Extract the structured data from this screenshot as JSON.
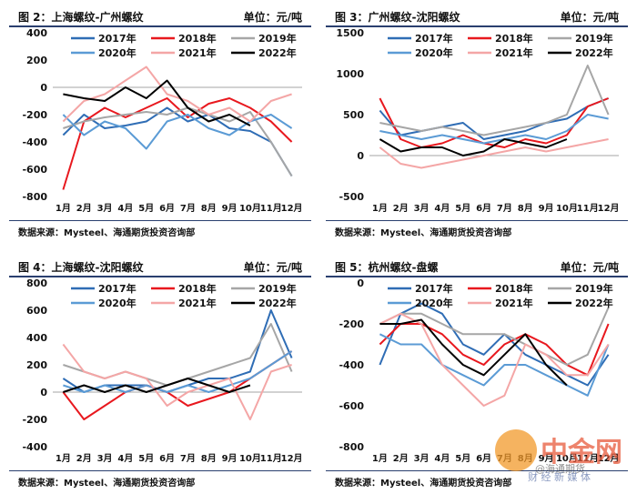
{
  "panels": [
    {
      "title": "图 2：上海螺纹-广州螺纹",
      "unit": "单位：元/吨",
      "source": "数据来源：Mysteel、海通期货投资咨询部"
    },
    {
      "title": "图 3：广州螺纹-沈阳螺纹",
      "unit": "单位：元/吨",
      "source": "数据来源：Mysteel、海通期货投资咨询部"
    },
    {
      "title": "图 4：上海螺纹-沈阳螺纹",
      "unit": "单位：元/吨",
      "source": "数据来源：Mysteel、海通期货投资咨询部"
    },
    {
      "title": "图 5：杭州螺纹-盘螺",
      "unit": "单位：元/吨",
      "source": "数据来源：Mysteel、海通期货投资咨询部"
    }
  ],
  "watermark": {
    "brand": "中金网",
    "handle": "@海通期货",
    "tagline": "财 经 新 媒 体"
  },
  "colors": {
    "2017年": "#2f6db5",
    "2018年": "#e8181e",
    "2019年": "#a6a6a6",
    "2020年": "#5b9bd5",
    "2021年": "#f4a6a6",
    "2022年": "#000000"
  },
  "chart_data": [
    {
      "type": "line",
      "x": [
        "1月",
        "2月",
        "3月",
        "4月",
        "5月",
        "6月",
        "7月",
        "8月",
        "9月",
        "10月",
        "11月",
        "12月"
      ],
      "ylim": [
        -800,
        400
      ],
      "yticks": [
        400,
        200,
        0,
        -200,
        -400,
        -600,
        -800
      ],
      "legend": "top",
      "series": [
        {
          "name": "2017年",
          "values": [
            -350,
            -200,
            -300,
            -280,
            -250,
            -150,
            -250,
            -200,
            -300,
            -320,
            -400,
            -650
          ]
        },
        {
          "name": "2018年",
          "values": [
            -750,
            -250,
            -150,
            -220,
            -150,
            -80,
            -220,
            -120,
            -80,
            -150,
            -250,
            -400
          ]
        },
        {
          "name": "2019年",
          "values": [
            -300,
            -250,
            -220,
            -200,
            -180,
            -200,
            -150,
            -200,
            -250,
            -180,
            -400,
            -650
          ]
        },
        {
          "name": "2020年",
          "values": [
            -200,
            -350,
            -250,
            -300,
            -450,
            -250,
            -200,
            -300,
            -350,
            -250,
            -200,
            -300
          ]
        },
        {
          "name": "2021年",
          "values": [
            -250,
            -100,
            -50,
            50,
            150,
            -50,
            -100,
            -200,
            -150,
            -250,
            -100,
            -50
          ]
        },
        {
          "name": "2022年",
          "values": [
            -50,
            -80,
            -100,
            0,
            -80,
            50,
            -150,
            -250,
            -200,
            -280,
            null,
            null
          ]
        }
      ]
    },
    {
      "type": "line",
      "x": [
        "1月",
        "2月",
        "3月",
        "4月",
        "5月",
        "6月",
        "7月",
        "8月",
        "9月",
        "10月",
        "11月",
        "12月"
      ],
      "ylim": [
        -500,
        1500
      ],
      "yticks": [
        1500,
        1000,
        500,
        0,
        -500
      ],
      "legend": "top",
      "series": [
        {
          "name": "2017年",
          "values": [
            550,
            250,
            300,
            350,
            400,
            200,
            250,
            300,
            400,
            450,
            600,
            700
          ]
        },
        {
          "name": "2018年",
          "values": [
            700,
            200,
            100,
            150,
            250,
            150,
            100,
            200,
            150,
            250,
            600,
            700
          ]
        },
        {
          "name": "2019年",
          "values": [
            400,
            350,
            300,
            350,
            300,
            250,
            300,
            350,
            400,
            500,
            1100,
            500
          ]
        },
        {
          "name": "2020年",
          "values": [
            300,
            250,
            200,
            250,
            200,
            150,
            200,
            250,
            200,
            300,
            500,
            450
          ]
        },
        {
          "name": "2021年",
          "values": [
            100,
            -100,
            -150,
            -100,
            -50,
            0,
            50,
            100,
            50,
            100,
            150,
            200
          ]
        },
        {
          "name": "2022年",
          "values": [
            200,
            50,
            100,
            100,
            0,
            50,
            200,
            150,
            100,
            200,
            null,
            null
          ]
        }
      ]
    },
    {
      "type": "line",
      "x": [
        "1月",
        "2月",
        "3月",
        "4月",
        "5月",
        "6月",
        "7月",
        "8月",
        "9月",
        "10月",
        "11月",
        "12月"
      ],
      "ylim": [
        -400,
        800
      ],
      "yticks": [
        800,
        600,
        400,
        200,
        0,
        -200,
        -400
      ],
      "legend": "top",
      "series": [
        {
          "name": "2017年",
          "values": [
            100,
            0,
            50,
            50,
            50,
            0,
            50,
            100,
            100,
            150,
            600,
            250
          ]
        },
        {
          "name": "2018年",
          "values": [
            0,
            -200,
            -100,
            0,
            50,
            0,
            -100,
            -50,
            0,
            100,
            200,
            300
          ]
        },
        {
          "name": "2019年",
          "values": [
            200,
            150,
            100,
            150,
            100,
            50,
            100,
            150,
            200,
            250,
            500,
            150
          ]
        },
        {
          "name": "2020年",
          "values": [
            50,
            0,
            50,
            0,
            50,
            0,
            50,
            0,
            50,
            100,
            200,
            300
          ]
        },
        {
          "name": "2021年",
          "values": [
            350,
            150,
            100,
            150,
            100,
            -100,
            0,
            50,
            100,
            -200,
            150,
            200
          ]
        },
        {
          "name": "2022年",
          "values": [
            0,
            50,
            0,
            50,
            0,
            50,
            100,
            50,
            0,
            50,
            null,
            null
          ]
        }
      ]
    },
    {
      "type": "line",
      "x": [
        "1月",
        "2月",
        "3月",
        "4月",
        "5月",
        "6月",
        "7月",
        "8月",
        "9月",
        "10月",
        "11月",
        "12月"
      ],
      "ylim": [
        -800,
        0
      ],
      "yticks": [
        0,
        -200,
        -400,
        -600,
        -800
      ],
      "legend": "top",
      "series": [
        {
          "name": "2017年",
          "values": [
            -400,
            -150,
            -100,
            -150,
            -300,
            -350,
            -250,
            -350,
            -400,
            -450,
            -500,
            -350
          ]
        },
        {
          "name": "2018年",
          "values": [
            -300,
            -200,
            -200,
            -250,
            -350,
            -400,
            -300,
            -250,
            -300,
            -400,
            -450,
            -200
          ]
        },
        {
          "name": "2019年",
          "values": [
            -200,
            -150,
            -150,
            -200,
            -250,
            -250,
            -250,
            -300,
            -350,
            -400,
            -350,
            -120
          ]
        },
        {
          "name": "2020年",
          "values": [
            -250,
            -300,
            -300,
            -400,
            -450,
            -500,
            -400,
            -400,
            -450,
            -500,
            -550,
            -300
          ]
        },
        {
          "name": "2021年",
          "values": [
            -200,
            -150,
            -200,
            -400,
            -500,
            -600,
            -550,
            -300,
            -350,
            -450,
            -450,
            -300
          ]
        },
        {
          "name": "2022年",
          "values": [
            -200,
            -200,
            -180,
            -300,
            -400,
            -450,
            -350,
            -250,
            -400,
            -500,
            null,
            null
          ]
        }
      ]
    }
  ]
}
